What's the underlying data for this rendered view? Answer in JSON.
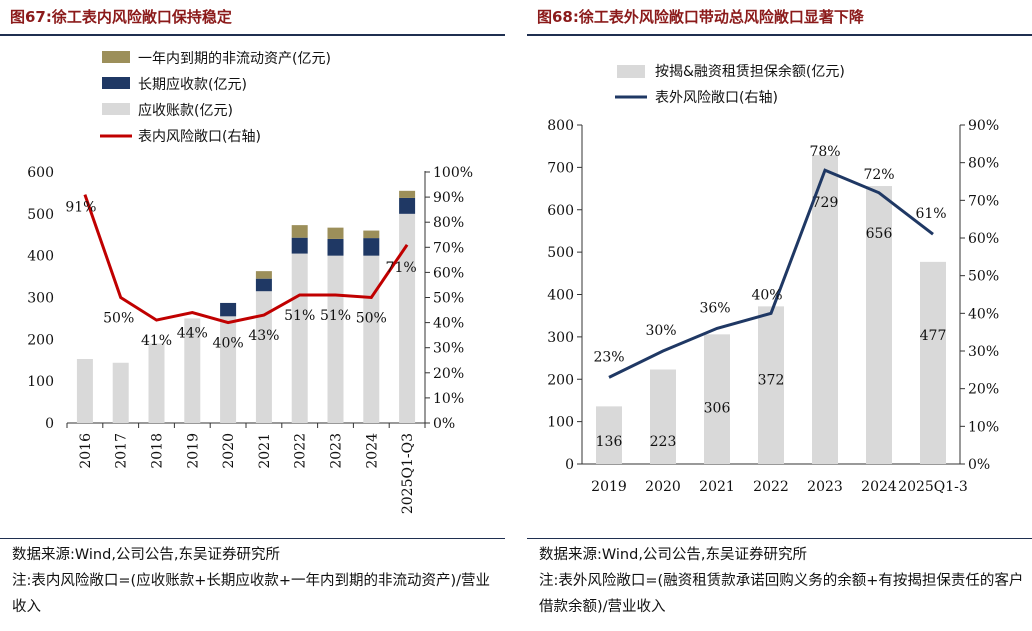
{
  "left_panel": {
    "title": "图67:徐工表内风险敞口保持稳定",
    "source": "数据来源:Wind,公司公告,东吴证券研究所",
    "note": "注:表内风险敞口=(应收账款+长期应收款+一年内到期的非流动资产)/营业收入"
  },
  "right_panel": {
    "title": "图68:徐工表外风险敞口带动总风险敞口显著下降",
    "source": "数据来源:Wind,公司公告,东吴证券研究所",
    "note": "注:表外风险敞口=(融资租赁款承诺回购义务的余额+有按揭担保责任的客户借款余额)/营业收入"
  },
  "colors": {
    "title_red": "#8b1a1a",
    "navy": "#1f3864",
    "olive": "#9c8f5a",
    "bar_grey": "#d9d9d9",
    "line_red": "#c00000"
  },
  "chart_data": [
    {
      "type": "bar",
      "stacked": true,
      "categories": [
        "2016",
        "2017",
        "2018",
        "2019",
        "2020",
        "2021",
        "2022",
        "2023",
        "2024",
        "2025Q1-Q3"
      ],
      "series": [
        {
          "name": "应收账款(亿元)",
          "kind": "bar",
          "color": "#d9d9d9",
          "values": [
            153,
            144,
            190,
            250,
            255,
            315,
            405,
            400,
            400,
            500
          ]
        },
        {
          "name": "长期应收款(亿元)",
          "kind": "bar",
          "color": "#1f3864",
          "values": [
            0,
            0,
            0,
            0,
            32,
            30,
            38,
            40,
            42,
            38
          ]
        },
        {
          "name": "一年内到期的非流动资产(亿元)",
          "kind": "bar",
          "color": "#9c8f5a",
          "values": [
            0,
            0,
            0,
            0,
            0,
            18,
            30,
            27,
            18,
            17
          ]
        },
        {
          "name": "表内风险敞口(右轴)",
          "kind": "line",
          "axis": "right",
          "color": "#c00000",
          "values": [
            91,
            50,
            41,
            44,
            40,
            43,
            51,
            51,
            50,
            71
          ],
          "labels": [
            "91%",
            "50%",
            "41%",
            "44%",
            "40%",
            "43%",
            "51%",
            "51%",
            "50%",
            "71%"
          ]
        }
      ],
      "ylim": [
        0,
        600
      ],
      "yticks": [
        "0",
        "100",
        "200",
        "300",
        "400",
        "500",
        "600"
      ],
      "y2lim": [
        0,
        100
      ],
      "y2ticks": [
        "0%",
        "10%",
        "20%",
        "30%",
        "40%",
        "50%",
        "60%",
        "70%",
        "80%",
        "90%",
        "100%"
      ],
      "legend_placement": "top-left",
      "grid": false
    },
    {
      "type": "bar",
      "categories": [
        "2019",
        "2020",
        "2021",
        "2022",
        "2023",
        "2024",
        "2025Q1-3"
      ],
      "series": [
        {
          "name": "按揭&融资租赁担保余额(亿元)",
          "kind": "bar",
          "color": "#d9d9d9",
          "values": [
            136,
            223,
            306,
            372,
            729,
            656,
            477
          ],
          "labels": [
            "136",
            "223",
            "306",
            "372",
            "729",
            "656",
            "477"
          ]
        },
        {
          "name": "表外风险敞口(右轴)",
          "kind": "line",
          "axis": "right",
          "color": "#1f3864",
          "values": [
            23,
            30,
            36,
            40,
            78,
            72,
            61
          ],
          "labels": [
            "23%",
            "30%",
            "36%",
            "40%",
            "78%",
            "72%",
            "61%"
          ]
        }
      ],
      "ylim": [
        0,
        800
      ],
      "yticks": [
        "0",
        "100",
        "200",
        "300",
        "400",
        "500",
        "600",
        "700",
        "800"
      ],
      "y2lim": [
        0,
        90
      ],
      "y2ticks": [
        "0%",
        "10%",
        "20%",
        "30%",
        "40%",
        "50%",
        "60%",
        "70%",
        "80%",
        "90%"
      ],
      "legend_placement": "top-center",
      "grid": false
    }
  ]
}
